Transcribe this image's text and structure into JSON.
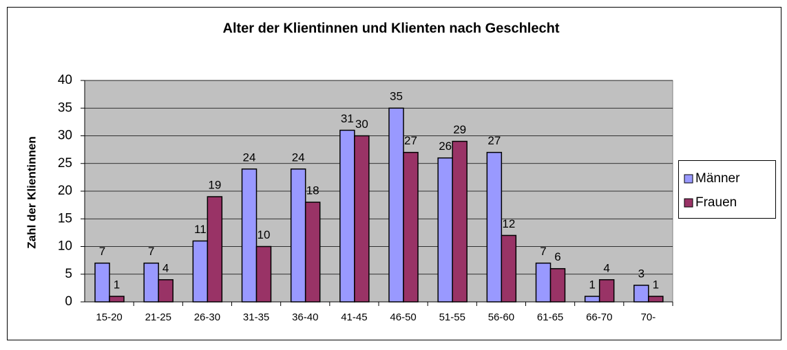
{
  "chart_data": {
    "type": "bar",
    "title": "Alter der Klientinnen und Klienten nach Geschlecht",
    "y_label": "Zahl der Klientinnen",
    "categories": [
      "15-20",
      "21-25",
      "26-30",
      "31-35",
      "36-40",
      "41-45",
      "46-50",
      "51-55",
      "56-60",
      "61-65",
      "66-70",
      "70-"
    ],
    "series": [
      {
        "name": "Männer",
        "color": "#9999ff",
        "values": [
          7,
          7,
          11,
          24,
          24,
          31,
          35,
          26,
          27,
          7,
          1,
          3
        ]
      },
      {
        "name": "Frauen",
        "color": "#993366",
        "values": [
          1,
          4,
          19,
          10,
          18,
          30,
          27,
          29,
          12,
          6,
          4,
          1
        ]
      }
    ],
    "ylim": [
      0,
      40
    ],
    "yticks": [
      0,
      5,
      10,
      15,
      20,
      25,
      30,
      35,
      40
    ],
    "grid": true,
    "legend": "right",
    "plot_background": "#c0c0c0"
  }
}
